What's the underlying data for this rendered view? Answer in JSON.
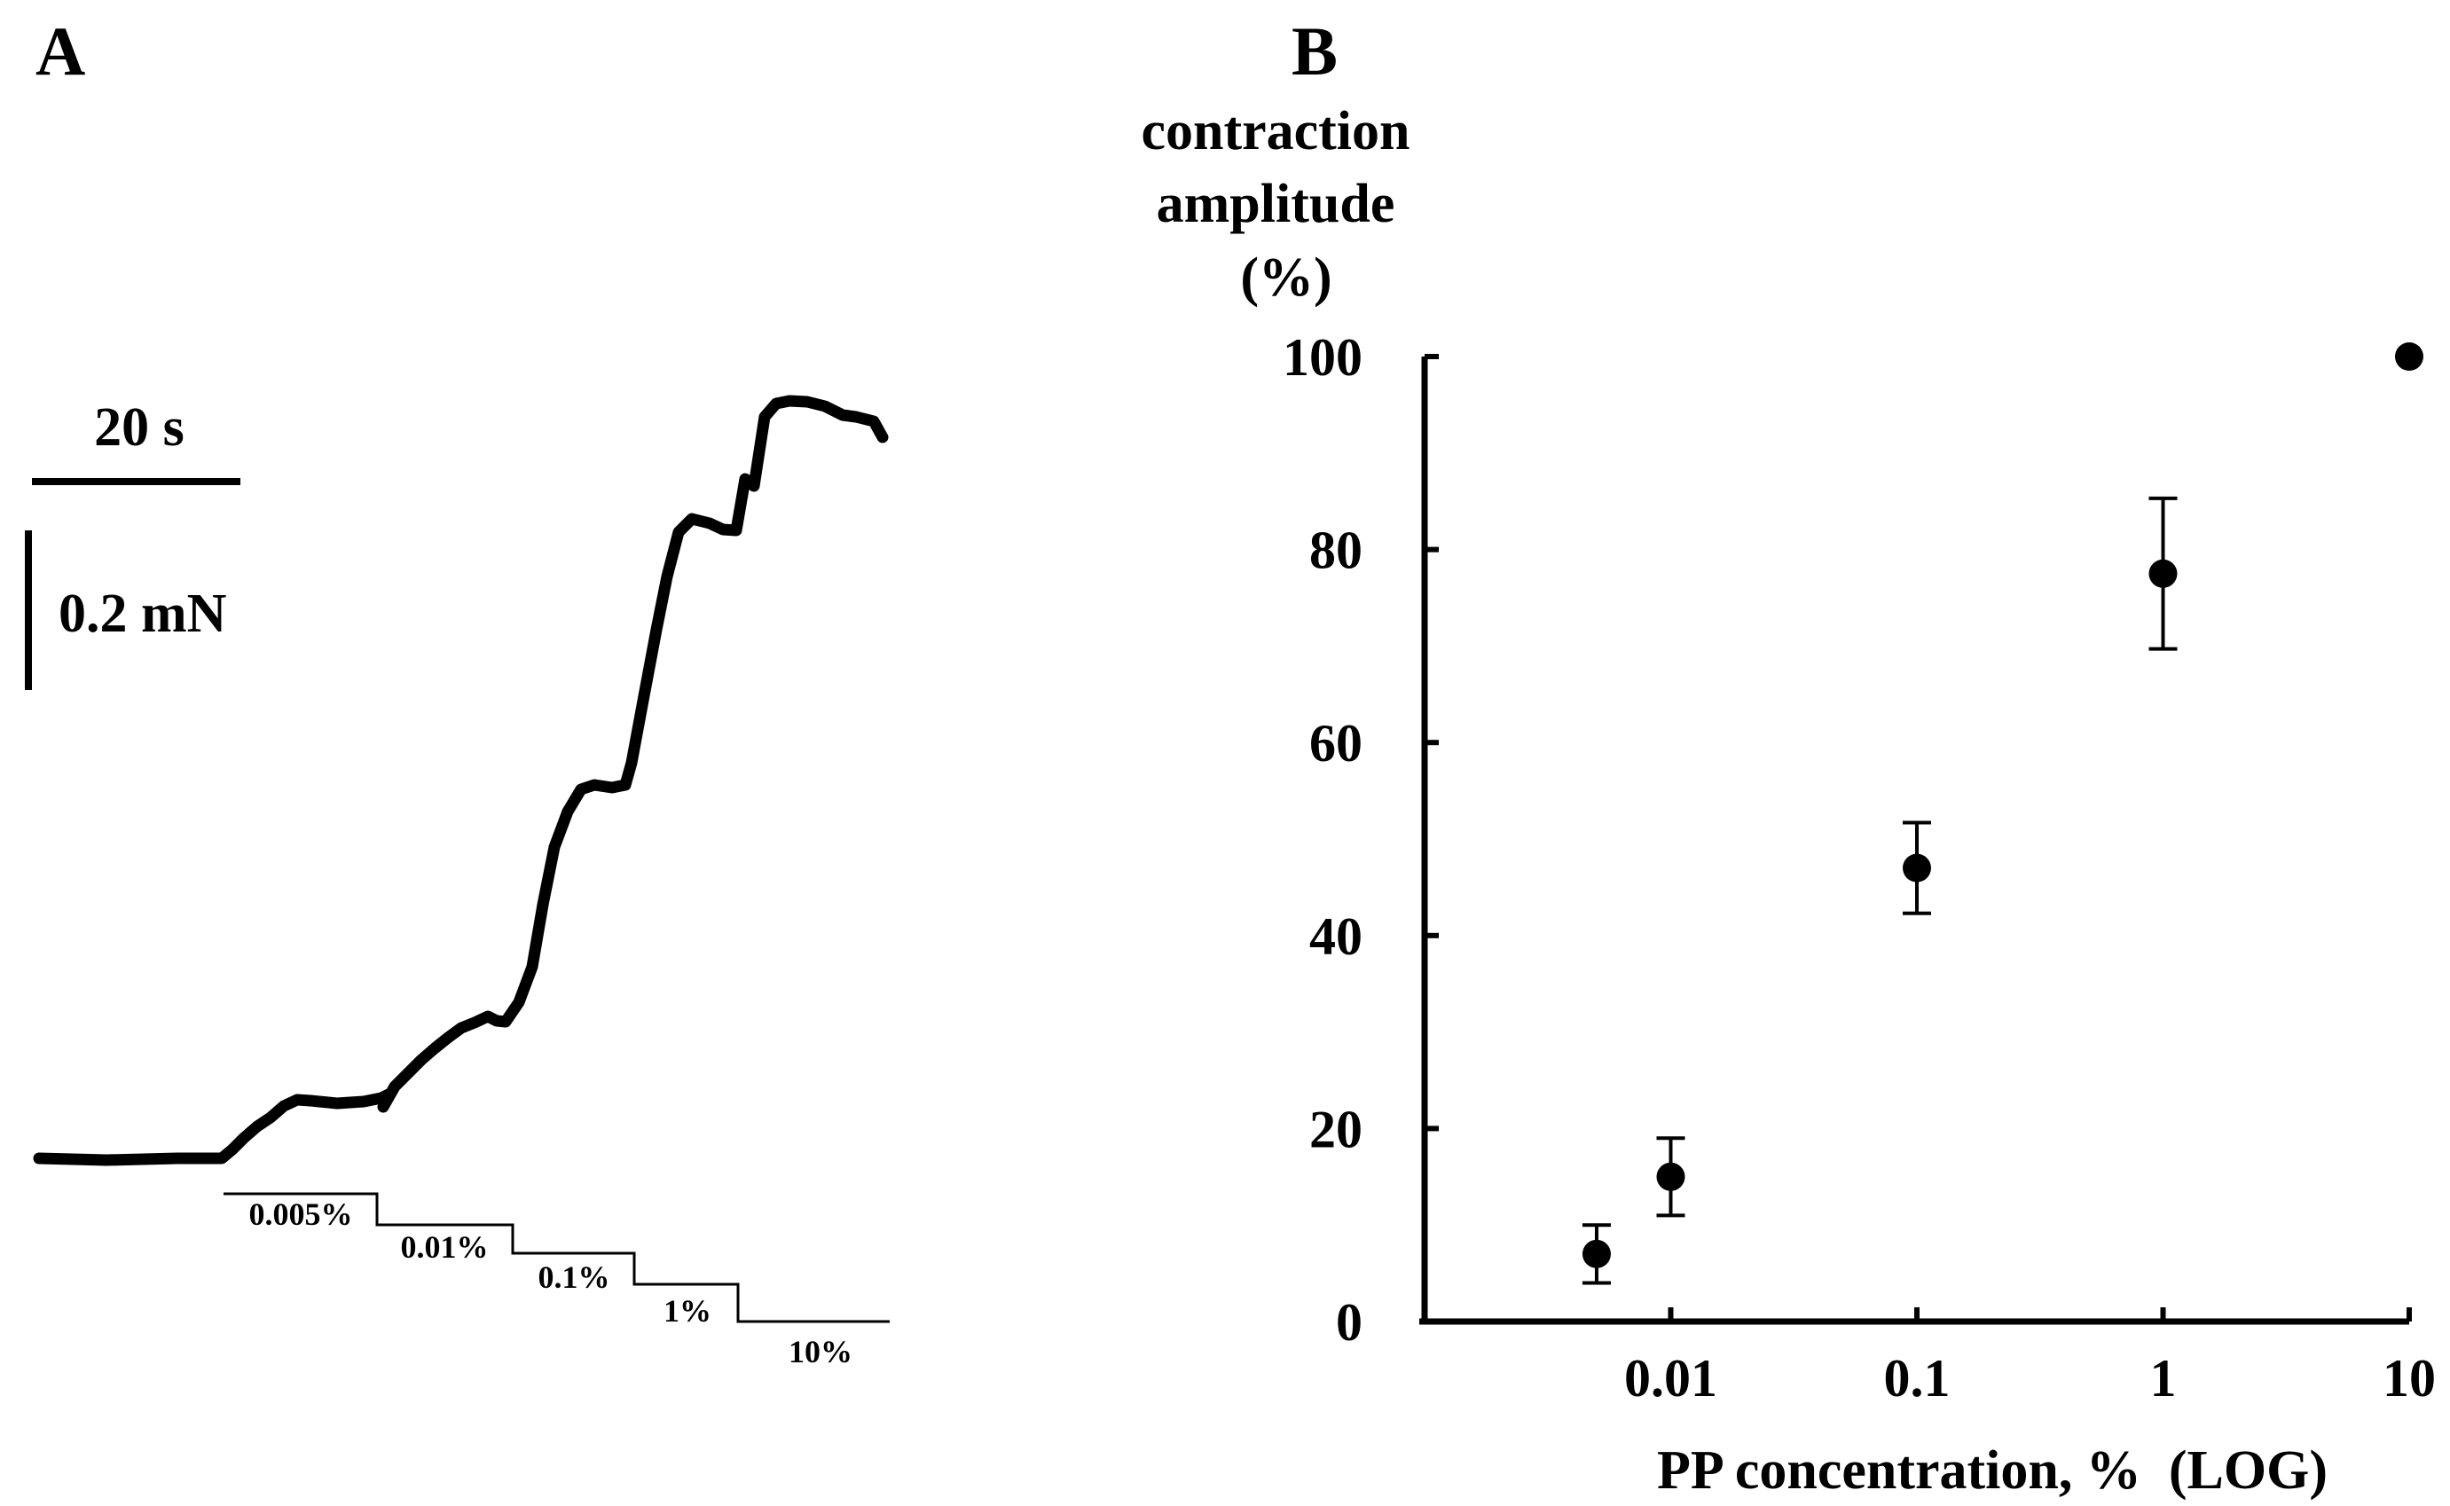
{
  "colors": {
    "ink": "#000000",
    "background": "#ffffff"
  },
  "panel_a": {
    "label": "A",
    "time_scalebar_label": "20 s",
    "force_scalebar_label": "0.2 mN",
    "trace_description_values": {
      "baseline_level": 0.0,
      "plateaus": [
        0.08,
        0.23,
        0.6,
        0.93,
        1.0
      ]
    },
    "steps": [
      {
        "label": "0.005%"
      },
      {
        "label": "0.01%"
      },
      {
        "label": "0.1%"
      },
      {
        "label": "1%"
      },
      {
        "label": "10%"
      }
    ]
  },
  "chart_data": {
    "type": "scatter",
    "panel_label": "B",
    "title": "",
    "ylabel_lines": [
      "contraction",
      "amplitude",
      "(%)"
    ],
    "xlabel": "PP concentration, %  (LOG)",
    "x_scale": "log",
    "xlim": [
      0.001,
      10
    ],
    "ylim": [
      0,
      100
    ],
    "x_ticks": [
      {
        "value": 0.01,
        "label": "0.01"
      },
      {
        "value": 0.1,
        "label": "0.1"
      },
      {
        "value": 1,
        "label": "1"
      },
      {
        "value": 10,
        "label": "10"
      }
    ],
    "y_ticks": [
      {
        "value": 0,
        "label": "0"
      },
      {
        "value": 20,
        "label": "20"
      },
      {
        "value": 40,
        "label": "40"
      },
      {
        "value": 60,
        "label": "60"
      },
      {
        "value": 80,
        "label": "80"
      },
      {
        "value": 100,
        "label": "100"
      }
    ],
    "series": [
      {
        "name": "contraction amplitude",
        "points": [
          {
            "x": 0.005,
            "y": 7,
            "err": 3
          },
          {
            "x": 0.01,
            "y": 15,
            "err": 4
          },
          {
            "x": 0.1,
            "y": 47,
            "err": 4.7
          },
          {
            "x": 1,
            "y": 77.5,
            "err": 7.8
          },
          {
            "x": 10,
            "y": 100,
            "err": 0
          }
        ]
      }
    ]
  }
}
